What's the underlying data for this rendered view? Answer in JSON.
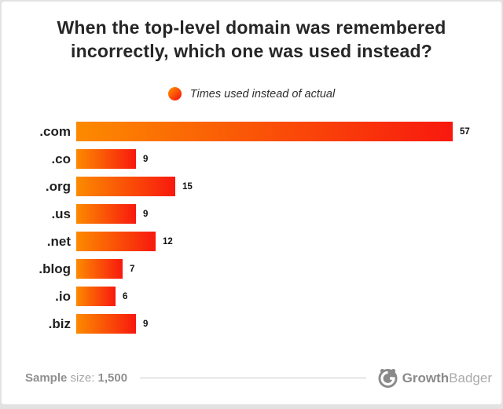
{
  "title": "When the top-level domain was remembered incorrectly, which one was used instead?",
  "legend": {
    "label": "Times used instead of actual",
    "dot_icon": "gradient-dot-icon"
  },
  "chart_data": {
    "type": "bar",
    "orientation": "horizontal",
    "title": "When the top-level domain was remembered incorrectly, which one was used instead?",
    "series_label": "Times used instead of actual",
    "categories": [
      ".com",
      ".co",
      ".org",
      ".us",
      ".net",
      ".blog",
      ".io",
      ".biz"
    ],
    "values": [
      57,
      9,
      15,
      9,
      12,
      7,
      6,
      9
    ],
    "xlim": [
      0,
      57
    ],
    "grid": false,
    "legend_position": "top-center",
    "bar_gradient_start": "#fc8a00",
    "bar_gradient_end": "#f8190e",
    "value_labels": true
  },
  "footer": {
    "sample_bold": "Sample",
    "sample_mid": " size: ",
    "sample_value": "1,500",
    "brand_bold": "Growth",
    "brand_light": "Badger",
    "brand_icon": "growthbadger-badger-icon"
  },
  "colors": {
    "accent_start": "#fc8a00",
    "accent_end": "#f8190e",
    "title_text": "#262626",
    "footer_text": "#9b9b9b",
    "background": "#ffffff",
    "page_edge": "#e2e2e2"
  }
}
